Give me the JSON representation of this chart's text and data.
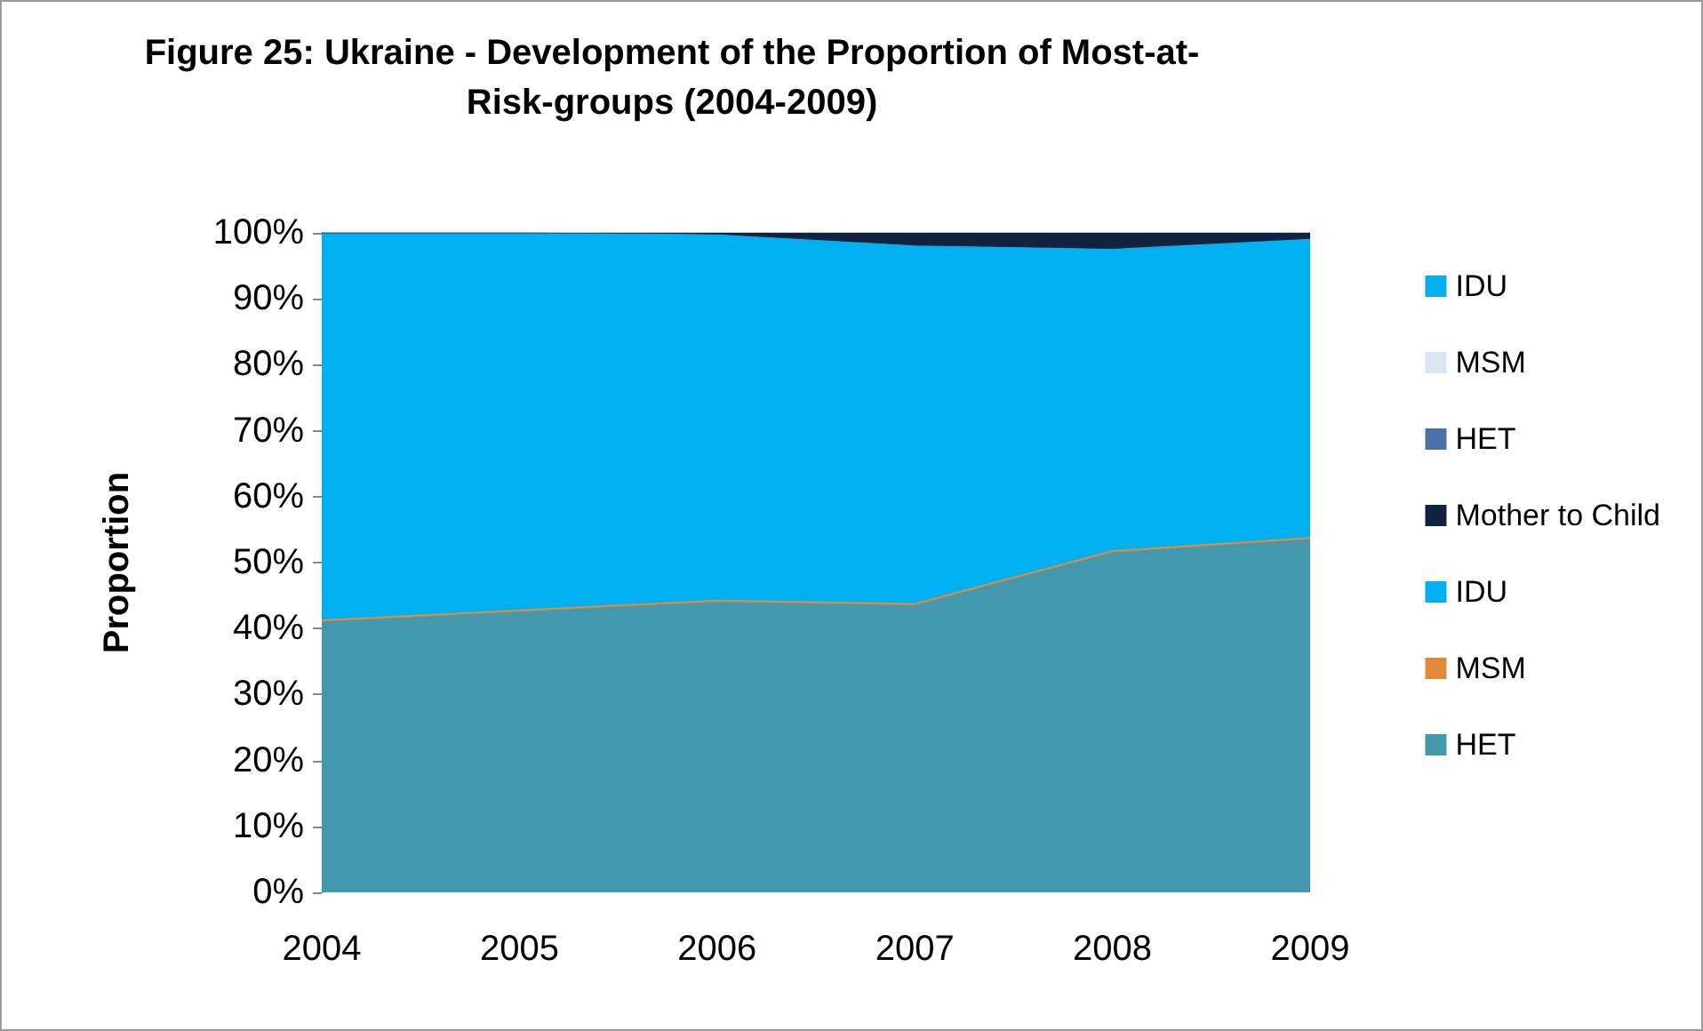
{
  "chart_data": {
    "type": "area",
    "title": "Figure 25: Ukraine - Development of the Proportion of Most-at-\nRisk-groups (2004-2009)",
    "ylabel": "Proportion",
    "categories": [
      "2004",
      "2005",
      "2006",
      "2007",
      "2008",
      "2009"
    ],
    "stacked": true,
    "series": [
      {
        "name": "HET",
        "color": "#4398ae",
        "values": [
          41,
          42.5,
          44,
          43.5,
          51.5,
          53.5
        ]
      },
      {
        "name": "MSM",
        "color": "#e08a3c",
        "values": [
          0.3,
          0.3,
          0.3,
          0.3,
          0.3,
          0.3
        ]
      },
      {
        "name": "IDU",
        "color": "#00b0f0",
        "values": [
          58.7,
          57.2,
          55.4,
          54.2,
          45.7,
          45.2
        ]
      },
      {
        "name": "Mother to Child",
        "color": "#11213f",
        "values": [
          0,
          0,
          0.3,
          2,
          2.5,
          1
        ]
      },
      {
        "name": "HET",
        "color": "#4a72a8",
        "values": [
          null,
          null,
          null,
          null,
          null,
          null
        ]
      },
      {
        "name": "MSM",
        "color": "#dce6f2",
        "values": [
          null,
          null,
          null,
          null,
          null,
          null
        ]
      },
      {
        "name": "IDU",
        "color": "#00b0f0",
        "values": [
          null,
          null,
          null,
          null,
          null,
          null
        ]
      }
    ],
    "ylim": [
      0,
      100
    ],
    "yticks": [
      {
        "value": 0,
        "label": "0%"
      },
      {
        "value": 10,
        "label": "10%"
      },
      {
        "value": 20,
        "label": "20%"
      },
      {
        "value": 30,
        "label": "30%"
      },
      {
        "value": 40,
        "label": "40%"
      },
      {
        "value": 50,
        "label": "50%"
      },
      {
        "value": 60,
        "label": "60%"
      },
      {
        "value": 70,
        "label": "70%"
      },
      {
        "value": 80,
        "label": "80%"
      },
      {
        "value": 90,
        "label": "90%"
      },
      {
        "value": 100,
        "label": "100%"
      }
    ],
    "grid": false,
    "legend": "right",
    "marker": "none"
  }
}
